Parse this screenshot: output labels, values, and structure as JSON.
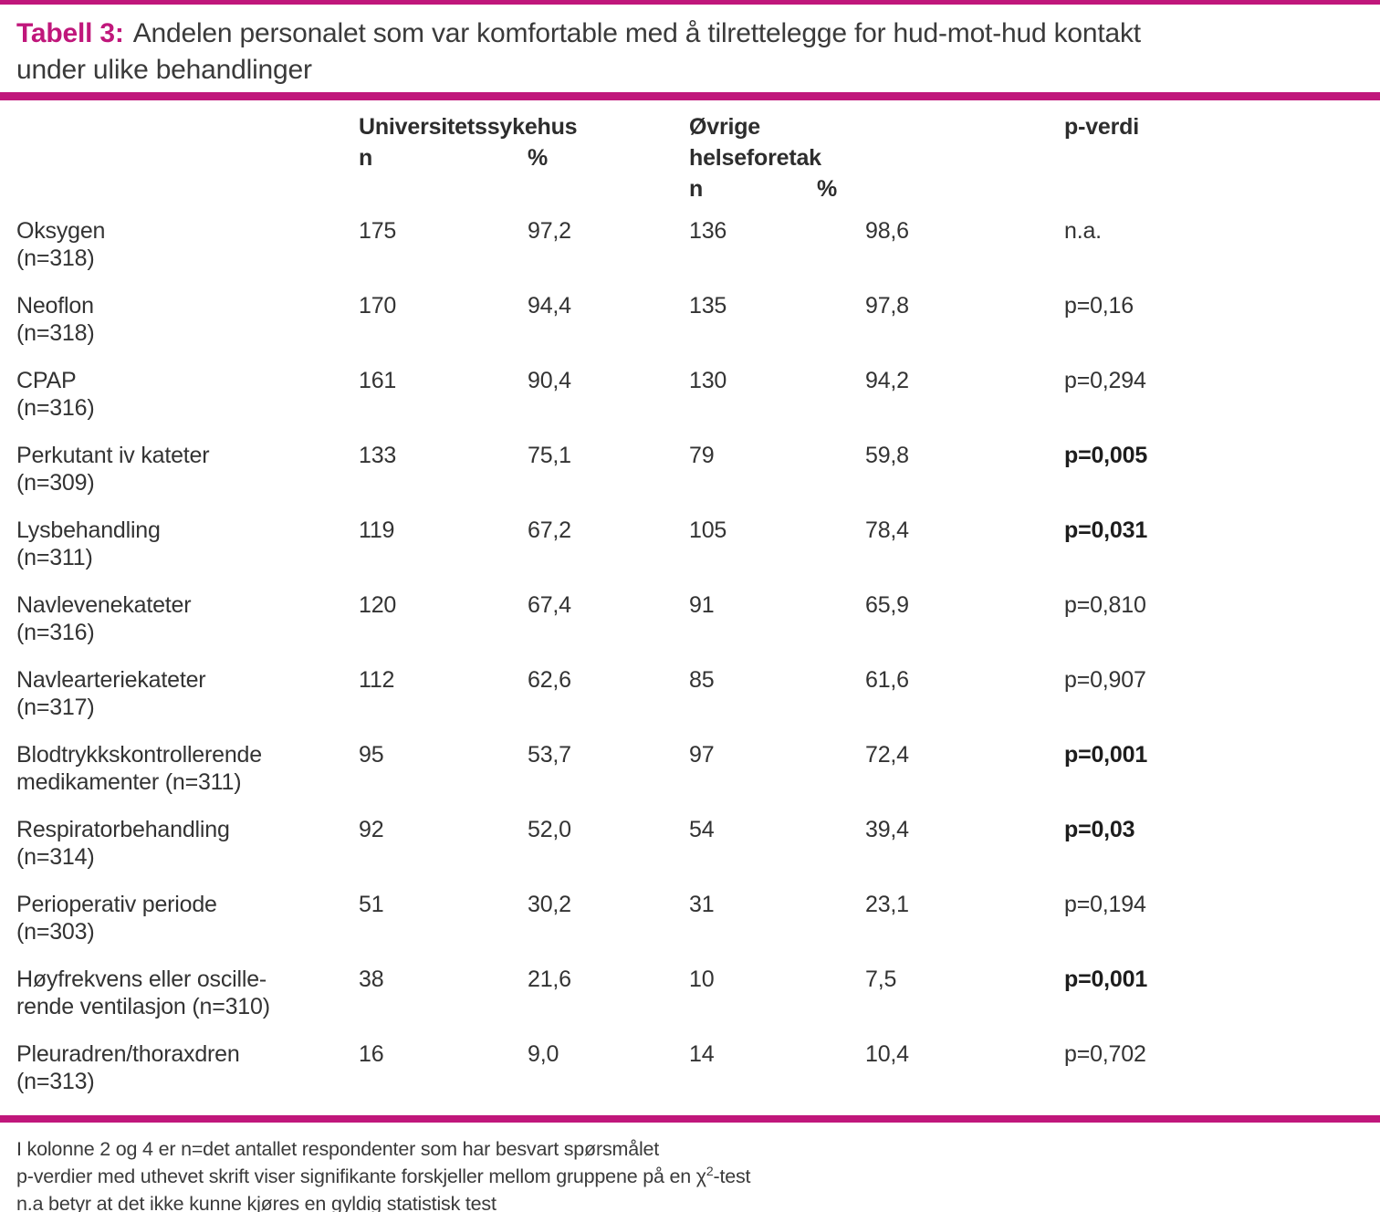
{
  "colors": {
    "accent": "#C0177B",
    "text": "#333333"
  },
  "title": {
    "label": "Tabell 3:",
    "line1": "Andelen personalet som var komfortable med å tilrettelegge for hud-mot-hud kontakt",
    "line2": "under ulike behandlinger"
  },
  "table": {
    "header": {
      "group1": "Universitetssykehus",
      "group2_line1": "Øvrige",
      "group2_line2": "helseforetak",
      "n_label": "n",
      "pct_label": "%",
      "p_label": "p-verdi"
    },
    "rows": [
      {
        "name1": "Oksygen",
        "name2": "(n=318)",
        "us_n": "175",
        "us_pct": "97,2",
        "oh_n": "136",
        "oh_pct": "98,6",
        "p": "n.a.",
        "p_bold": false
      },
      {
        "name1": "Neoflon",
        "name2": "(n=318)",
        "us_n": "170",
        "us_pct": "94,4",
        "oh_n": "135",
        "oh_pct": "97,8",
        "p": "p=0,16",
        "p_bold": false
      },
      {
        "name1": "CPAP",
        "name2": "(n=316)",
        "us_n": "161",
        "us_pct": "90,4",
        "oh_n": "130",
        "oh_pct": "94,2",
        "p": "p=0,294",
        "p_bold": false
      },
      {
        "name1": "Perkutant iv kateter",
        "name2": "(n=309)",
        "us_n": "133",
        "us_pct": "75,1",
        "oh_n": "79",
        "oh_pct": "59,8",
        "p": "p=0,005",
        "p_bold": true
      },
      {
        "name1": "Lysbehandling",
        "name2": "(n=311)",
        "us_n": "119",
        "us_pct": "67,2",
        "oh_n": "105",
        "oh_pct": "78,4",
        "p": "p=0,031",
        "p_bold": true
      },
      {
        "name1": "Navlevenekateter",
        "name2": "(n=316)",
        "us_n": "120",
        "us_pct": "67,4",
        "oh_n": "91",
        "oh_pct": "65,9",
        "p": "p=0,810",
        "p_bold": false
      },
      {
        "name1": "Navlearteriekateter",
        "name2": "(n=317)",
        "us_n": "112",
        "us_pct": "62,6",
        "oh_n": "85",
        "oh_pct": "61,6",
        "p": "p=0,907",
        "p_bold": false
      },
      {
        "name1": "Blodtrykkskontrollerende",
        "name2": "medikamenter (n=311)",
        "us_n": "95",
        "us_pct": "53,7",
        "oh_n": "97",
        "oh_pct": "72,4",
        "p": "p=0,001",
        "p_bold": true
      },
      {
        "name1": "Respiratorbehandling",
        "name2": "(n=314)",
        "us_n": "92",
        "us_pct": "52,0",
        "oh_n": "54",
        "oh_pct": "39,4",
        "p": "p=0,03",
        "p_bold": true
      },
      {
        "name1": "Perioperativ periode",
        "name2": "(n=303)",
        "us_n": "51",
        "us_pct": "30,2",
        "oh_n": "31",
        "oh_pct": "23,1",
        "p": "p=0,194",
        "p_bold": false
      },
      {
        "name1": "Høyfrekvens eller oscille-",
        "name2": "rende ventilasjon (n=310)",
        "us_n": "38",
        "us_pct": "21,6",
        "oh_n": "10",
        "oh_pct": "7,5",
        "p": "p=0,001",
        "p_bold": true
      },
      {
        "name1": "Pleuradren/thoraxdren",
        "name2": "(n=313)",
        "us_n": "16",
        "us_pct": "9,0",
        "oh_n": "14",
        "oh_pct": "10,4",
        "p": "p=0,702",
        "p_bold": false
      }
    ]
  },
  "footnotes": {
    "line1": "I kolonne 2 og 4 er n=det antallet respondenter som har besvart spørsmålet",
    "line2_pre": "p-verdier med uthevet skrift viser signifikante forskjeller mellom gruppene på en χ",
    "line2_sup": "2",
    "line2_post": "-test",
    "line3": "n.a betyr at det ikke kunne kjøres en gyldig statistisk test"
  }
}
